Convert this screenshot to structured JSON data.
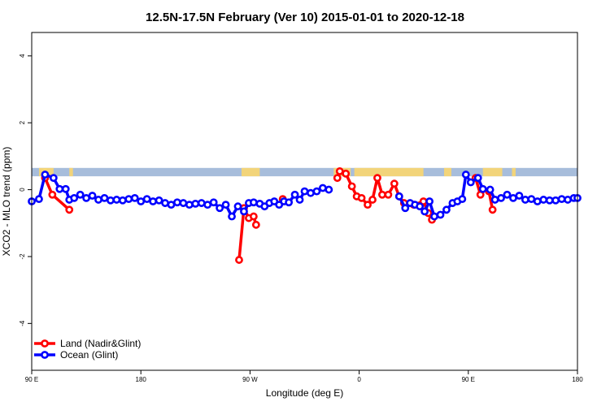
{
  "chart_data": {
    "type": "line",
    "title": "12.5N-17.5N February (Ver 10)   2015-01-01 to 2020-12-18",
    "xlabel": "Longitude (deg E)",
    "ylabel": "XCO2 - MLO trend (ppm)",
    "xlim": [
      90,
      540
    ],
    "ylim": [
      -5.4,
      4.7
    ],
    "x_ticks": [
      {
        "value": 90,
        "label": "90 E"
      },
      {
        "value": 180,
        "label": "180"
      },
      {
        "value": 270,
        "label": "90 W"
      },
      {
        "value": 360,
        "label": "0"
      },
      {
        "value": 450,
        "label": "90 E"
      },
      {
        "value": 540,
        "label": "180"
      }
    ],
    "y_ticks": [
      {
        "value": -4,
        "label": "-4"
      },
      {
        "value": -2,
        "label": "-2"
      },
      {
        "value": 0,
        "label": "0"
      },
      {
        "value": 2,
        "label": "2"
      },
      {
        "value": 4,
        "label": "4"
      }
    ],
    "land_sea_band": {
      "y_range": [
        0.4,
        0.65
      ],
      "ocean_color": "#a7bddb",
      "land_color": "#f2d47a",
      "land_segments": [
        [
          96,
          108
        ],
        [
          121,
          124
        ],
        [
          263,
          278
        ],
        [
          339,
          353
        ],
        [
          356,
          413
        ],
        [
          430,
          436
        ],
        [
          462,
          478
        ],
        [
          486,
          489
        ]
      ]
    },
    "legend": {
      "position": "bottom-left",
      "entries": [
        {
          "label": "Land (Nadir&Glint)",
          "color": "#ff0000"
        },
        {
          "label": "Ocean (Glint)",
          "color": "#0000ff"
        }
      ]
    },
    "series": [
      {
        "name": "Land (Nadir&Glint)",
        "color": "#ff0000",
        "segments": [
          [
            [
              101,
              0.35
            ],
            [
              107,
              -0.15
            ],
            [
              121,
              -0.6
            ]
          ],
          [
            [
              261,
              -2.1
            ],
            [
              265,
              -0.55
            ],
            [
              269,
              -0.85
            ],
            [
              273,
              -0.8
            ],
            [
              275,
              -1.05
            ]
          ],
          [
            [
              297,
              -0.28
            ]
          ],
          [
            [
              342,
              0.35
            ],
            [
              344,
              0.55
            ],
            [
              349,
              0.48
            ],
            [
              354,
              0.1
            ],
            [
              358,
              -0.2
            ],
            [
              362,
              -0.25
            ],
            [
              367,
              -0.45
            ],
            [
              371,
              -0.3
            ],
            [
              375,
              0.35
            ],
            [
              379,
              -0.15
            ],
            [
              384,
              -0.15
            ],
            [
              389,
              0.18
            ],
            [
              393,
              -0.2
            ],
            [
              397,
              -0.4
            ],
            [
              405,
              -0.45
            ],
            [
              413,
              -0.35
            ],
            [
              417,
              -0.7
            ],
            [
              420,
              -0.9
            ]
          ],
          [
            [
              456,
              0.35
            ],
            [
              460,
              -0.15
            ]
          ],
          [
            [
              467,
              -0.05
            ],
            [
              470,
              -0.6
            ]
          ]
        ]
      },
      {
        "name": "Ocean (Glint)",
        "color": "#0000ff",
        "segments": [
          [
            [
              90,
              -0.35
            ],
            [
              96,
              -0.28
            ],
            [
              101,
              0.45
            ],
            [
              108,
              0.35
            ],
            [
              113,
              0.02
            ],
            [
              118,
              0.02
            ],
            [
              121,
              -0.3
            ],
            [
              125,
              -0.25
            ],
            [
              130,
              -0.15
            ],
            [
              135,
              -0.25
            ],
            [
              140,
              -0.18
            ],
            [
              145,
              -0.3
            ],
            [
              150,
              -0.25
            ],
            [
              155,
              -0.32
            ],
            [
              160,
              -0.3
            ],
            [
              165,
              -0.32
            ],
            [
              170,
              -0.28
            ],
            [
              175,
              -0.25
            ],
            [
              180,
              -0.35
            ],
            [
              185,
              -0.28
            ],
            [
              190,
              -0.35
            ],
            [
              195,
              -0.32
            ],
            [
              200,
              -0.4
            ],
            [
              205,
              -0.45
            ],
            [
              210,
              -0.38
            ],
            [
              215,
              -0.4
            ],
            [
              220,
              -0.45
            ],
            [
              225,
              -0.42
            ],
            [
              230,
              -0.4
            ],
            [
              235,
              -0.45
            ],
            [
              240,
              -0.38
            ],
            [
              245,
              -0.55
            ],
            [
              250,
              -0.45
            ],
            [
              255,
              -0.8
            ],
            [
              260,
              -0.5
            ],
            [
              265,
              -0.65
            ],
            [
              269,
              -0.4
            ],
            [
              273,
              -0.38
            ],
            [
              278,
              -0.42
            ],
            [
              282,
              -0.5
            ],
            [
              286,
              -0.4
            ],
            [
              290,
              -0.35
            ],
            [
              294,
              -0.45
            ],
            [
              298,
              -0.35
            ],
            [
              302,
              -0.38
            ],
            [
              307,
              -0.15
            ],
            [
              311,
              -0.3
            ],
            [
              315,
              -0.05
            ],
            [
              320,
              -0.1
            ],
            [
              325,
              -0.05
            ],
            [
              330,
              0.05
            ],
            [
              335,
              0.0
            ]
          ],
          [
            [
              393,
              -0.2
            ],
            [
              398,
              -0.55
            ],
            [
              402,
              -0.4
            ],
            [
              406,
              -0.45
            ],
            [
              410,
              -0.5
            ],
            [
              414,
              -0.65
            ],
            [
              418,
              -0.35
            ],
            [
              422,
              -0.8
            ],
            [
              427,
              -0.75
            ],
            [
              432,
              -0.6
            ],
            [
              437,
              -0.4
            ],
            [
              441,
              -0.35
            ],
            [
              445,
              -0.28
            ],
            [
              448,
              0.45
            ],
            [
              452,
              0.22
            ],
            [
              458,
              0.35
            ],
            [
              462,
              0.02
            ],
            [
              468,
              0.0
            ],
            [
              472,
              -0.3
            ],
            [
              477,
              -0.25
            ],
            [
              482,
              -0.15
            ],
            [
              487,
              -0.25
            ],
            [
              492,
              -0.18
            ],
            [
              497,
              -0.3
            ],
            [
              502,
              -0.28
            ],
            [
              507,
              -0.35
            ],
            [
              512,
              -0.3
            ],
            [
              517,
              -0.32
            ],
            [
              522,
              -0.32
            ],
            [
              527,
              -0.28
            ],
            [
              532,
              -0.3
            ],
            [
              537,
              -0.25
            ],
            [
              540,
              -0.25
            ]
          ]
        ]
      }
    ]
  }
}
